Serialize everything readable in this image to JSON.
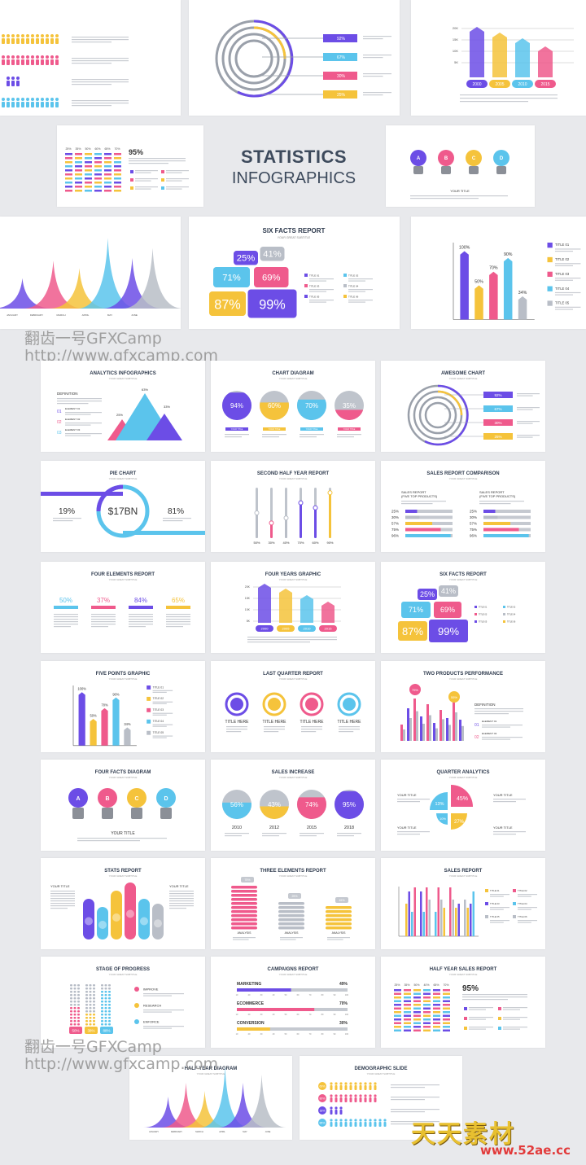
{
  "colors": {
    "purple": "#6c4de6",
    "pink": "#ef5a8c",
    "yellow": "#f5c33b",
    "blue": "#5bc4ec",
    "gray": "#b9bec7",
    "dark": "#2e3a4d"
  },
  "cover": {
    "title": "STATISTICS",
    "subtitle": "INFOGRAPHICS"
  },
  "subtitle": "YOUR GREAT SUBTITLE",
  "lorem": "Lorem ipsum dolor sit amet, consectetur adipiscing elit.",
  "top": {
    "years": [
      "2000",
      "2005",
      "2010",
      "2015"
    ],
    "year_axis": [
      "20K",
      "15K",
      "10K",
      "5K"
    ],
    "ring_pcts": [
      "92%",
      "67%",
      "30%",
      "25%"
    ],
    "demographic_pcts": [
      "60%",
      "80%",
      "18%",
      "85%"
    ],
    "months": [
      "JANUARY",
      "FEBRUARY",
      "MARCH",
      "APRIL",
      "MAY",
      "JUNE"
    ],
    "table_pcts": [
      "25%",
      "35%",
      "50%",
      "60%",
      "65%",
      "70%"
    ],
    "big_pct": "95%"
  },
  "six_facts": {
    "title": "SIX FACTS REPORT",
    "values": [
      "25%",
      "41%",
      "71%",
      "69%",
      "87%",
      "99%"
    ],
    "legend": [
      "TITLE 01",
      "TITLE 02",
      "TITLE 03",
      "TITLE 04",
      "TITLE 05",
      "TITLE 06"
    ]
  },
  "five_points": {
    "values": [
      "100%",
      "50%",
      "70%",
      "90%",
      "34%"
    ],
    "legend": [
      "TITLE 01",
      "TITLE 02",
      "TITLE 03",
      "TITLE 04",
      "TITLE 05"
    ]
  },
  "four_facts": {
    "letters": [
      "A",
      "B",
      "C",
      "D"
    ],
    "your_title": "YOUR TITLE"
  },
  "analytics": {
    "title": "ANALYTICS INFOGRAPHICS",
    "definition": "DEFINITION",
    "peaks": [
      "25%",
      "63%",
      "33%"
    ],
    "elements": [
      "ELEMENT 01",
      "ELEMENT 02",
      "ELEMENT 03"
    ],
    "nums": [
      "01",
      "02",
      "03"
    ]
  },
  "chart_diagram": {
    "title": "CHART DIAGRAM",
    "values": [
      "94%",
      "60%",
      "70%",
      "35%"
    ],
    "label": "YOUR TITLE"
  },
  "awesome": {
    "title": "AWESOME CHART",
    "values": [
      "92%",
      "67%",
      "30%",
      "25%"
    ]
  },
  "pie": {
    "title": "PIE CHART",
    "left": "19%",
    "center": "$17BN",
    "right": "81%"
  },
  "half_year": {
    "title": "SECOND HALF YEAR REPORT",
    "values": [
      "50%",
      "30%",
      "40%",
      "70%",
      "60%",
      "90%"
    ],
    "fill": [
      0.5,
      0.3,
      0.4,
      0.7,
      0.6,
      0.9
    ]
  },
  "sales_comp": {
    "title": "SALES REPORT COMPARISON",
    "col_title": "SALES REPORT",
    "col_sub": "(FIVE TOP PRODUCTS)",
    "values": [
      "25%",
      "30%",
      "57%",
      "75%",
      "96%"
    ],
    "fill": [
      0.25,
      0.3,
      0.57,
      0.75,
      0.96
    ]
  },
  "four_elements": {
    "title": "FOUR ELEMENTS REPORT",
    "values": [
      "50%",
      "37%",
      "84%",
      "65%"
    ]
  },
  "four_years": {
    "title": "FOUR YEARS GRAPHIC",
    "years": [
      "2000",
      "2005",
      "2010",
      "2015"
    ],
    "axis": [
      "20K",
      "15K",
      "10K",
      "5K"
    ]
  },
  "last_quarter": {
    "title": "LAST QUARTER REPORT",
    "label": "TITLE HERE"
  },
  "two_products": {
    "title": "TWO PRODUCTS PERFORMANCE",
    "pins": [
      "75%",
      "55%"
    ],
    "definition": "DEFINITION",
    "elements": [
      "ELEMENT 01",
      "ELEMENT 02"
    ],
    "nums": [
      "01",
      "02"
    ]
  },
  "sales_increase": {
    "title": "SALES INCREASE",
    "values": [
      "56%",
      "43%",
      "74%",
      "95%"
    ],
    "years": [
      "2010",
      "2012",
      "2015",
      "2018"
    ]
  },
  "quarter": {
    "title": "QUARTER ANALYTICS",
    "values": [
      "13%",
      "45%",
      "10%",
      "27%"
    ],
    "label": "YOUR TITLE"
  },
  "stats": {
    "title": "STATS REPORT",
    "label": "YOUR TITLE"
  },
  "three_elements": {
    "title": "THREE ELEMENTS REPORT",
    "values": [
      "75%",
      "25%",
      "45%"
    ],
    "label": "ANALYSIS"
  },
  "sales_report": {
    "title": "SALES REPORT",
    "legend": [
      "TITLE 01",
      "TITLE 02",
      "TITLE 03",
      "TITLE 04",
      "TITLE 05",
      "TITLE 06"
    ]
  },
  "stage": {
    "title": "STAGE OF PROGRESS",
    "values": [
      "50%",
      "38%",
      "88%"
    ],
    "steps": [
      "IMPROVE",
      "RESEARCH",
      "ENFORCE"
    ]
  },
  "campaigns": {
    "title": "CAMPAIGNS REPORT",
    "rows": [
      {
        "name": "MARKETING",
        "value": "49%",
        "fill": 0.49
      },
      {
        "name": "ECOMMERCE",
        "value": "70%",
        "fill": 0.7
      },
      {
        "name": "CONVERSION",
        "value": "30%",
        "fill": 0.3
      }
    ]
  },
  "half_year_sales": {
    "title": "HALF YEAR SALES REPORT",
    "pcts": [
      "25%",
      "35%",
      "50%",
      "40%",
      "65%",
      "70%"
    ],
    "big": "95%"
  },
  "half_year_diagram": {
    "title": "HALF YEAR DIAGRAM"
  },
  "demographic": {
    "title": "DEMOGRAPHIC SLIDE",
    "values": [
      "60%",
      "80%",
      "18%",
      "85%"
    ]
  },
  "watermark": {
    "line1": "翻齿一号GFXCamp",
    "line2": "http://www.gfxcamp.com"
  },
  "brand": {
    "cn": "天天素材",
    "url": "www.52ae.cc"
  }
}
